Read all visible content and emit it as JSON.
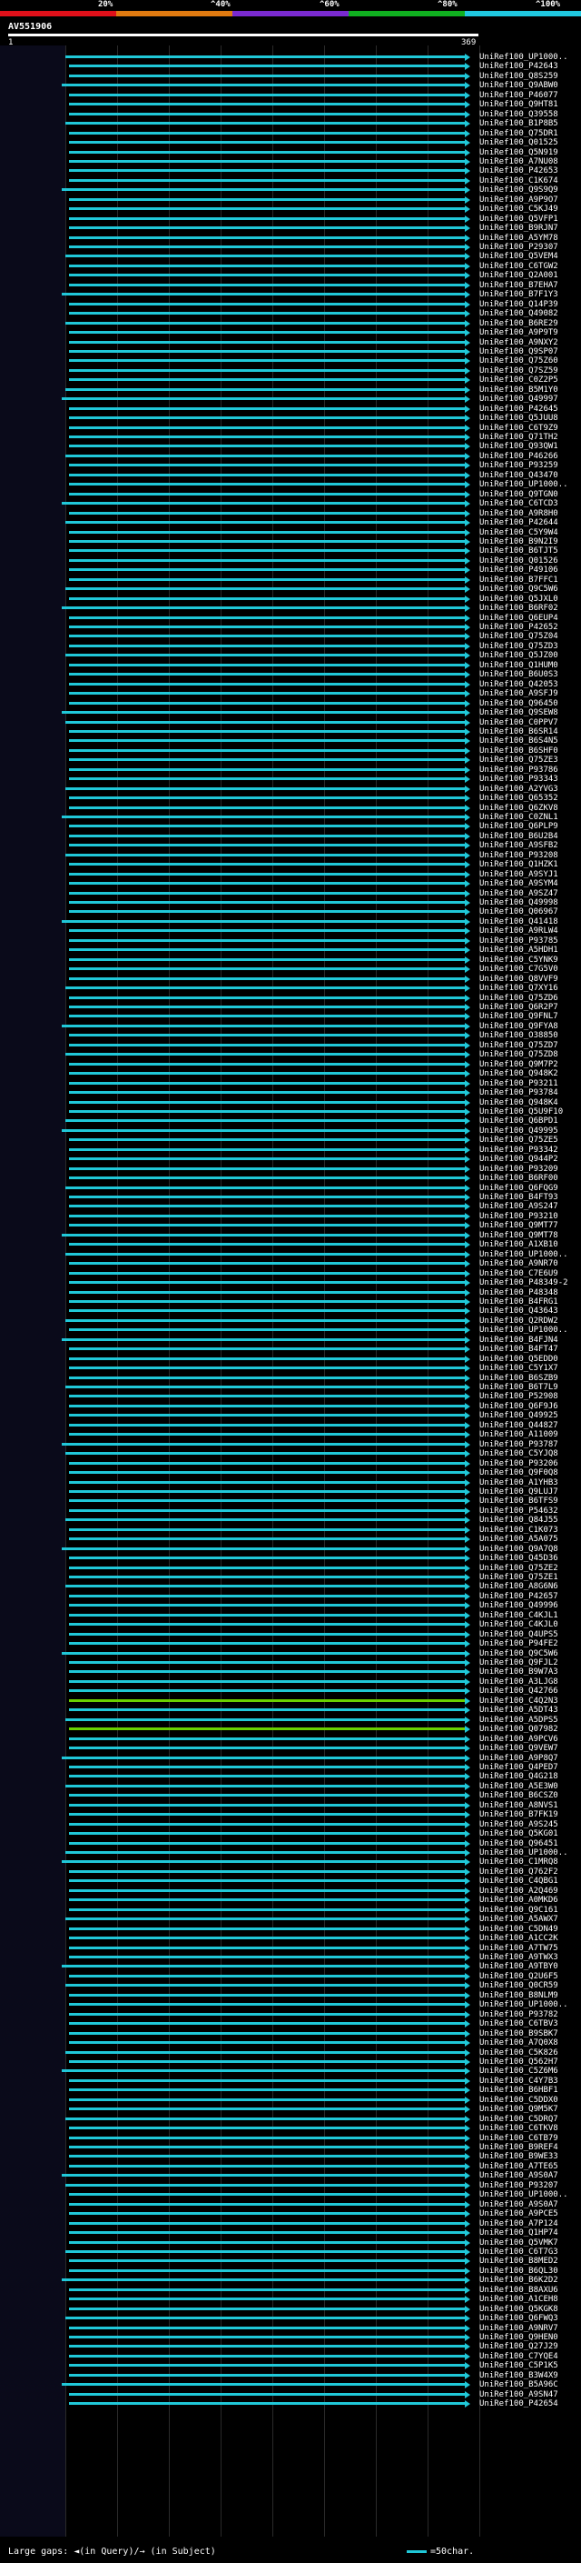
{
  "legend": {
    "labels": [
      "20%",
      "^40%",
      "^60%",
      "^80%",
      "^100%"
    ],
    "colors": [
      "#e0101a",
      "#e07a10",
      "#7a2ad0",
      "#10b020",
      "#20c8e0"
    ]
  },
  "query": {
    "id": "AV551906",
    "start": "1",
    "end": "369"
  },
  "colors": {
    "hit": "#20c8d8",
    "hit_green": "#6ad000",
    "background": "#000000"
  },
  "hits": [
    "UniRef100_UP1000..",
    "UniRef100_P42643",
    "UniRef100_Q8S259",
    "UniRef100_Q9ABW0",
    "UniRef100_P46077",
    "UniRef100_Q9HT81",
    "UniRef100_Q39558",
    "UniRef100_B1P8B5",
    "UniRef100_Q75DR1",
    "UniRef100_Q01525",
    "UniRef100_Q5N919",
    "UniRef100_A7NU08",
    "UniRef100_P42653",
    "UniRef100_C1K674",
    "UniRef100_Q9S9Q9",
    "UniRef100_A9P9O7",
    "UniRef100_C5KJ49",
    "UniRef100_Q5VFP1",
    "UniRef100_B9RJN7",
    "UniRef100_A5YM78",
    "UniRef100_P29307",
    "UniRef100_Q5VEM4",
    "UniRef100_C6TGW2",
    "UniRef100_Q2A001",
    "UniRef100_B7EHA7",
    "UniRef100_B7F1Y3",
    "UniRef100_Q14P39",
    "UniRef100_Q49082",
    "UniRef100_B6RE29",
    "UniRef100_A9P9T9",
    "UniRef100_A9NXY2",
    "UniRef100_Q9SP07",
    "UniRef100_Q75Z60",
    "UniRef100_Q7SZ59",
    "UniRef100_C0Z2P5",
    "UniRef100_B5M1Y0",
    "UniRef100_Q49997",
    "UniRef100_P42645",
    "UniRef100_Q5JUU8",
    "UniRef100_C6T9Z9",
    "UniRef100_Q71TH2",
    "UniRef100_Q93QW1",
    "UniRef100_P46266",
    "UniRef100_P93259",
    "UniRef100_Q43470",
    "UniRef100_UP1000..",
    "UniRef100_Q9TGN0",
    "UniRef100_C6TCD3",
    "UniRef100_A9R8H0",
    "UniRef100_P42644",
    "UniRef100_C5Y9W4",
    "UniRef100_B9N2I9",
    "UniRef100_B6TJT5",
    "UniRef100_Q01526",
    "UniRef100_P49106",
    "UniRef100_B7FFC1",
    "UniRef100_Q9C5W6",
    "UniRef100_Q5JXL0",
    "UniRef100_B6RF02",
    "UniRef100_Q6EUP4",
    "UniRef100_P42652",
    "UniRef100_Q75Z04",
    "UniRef100_Q75ZD3",
    "UniRef100_Q5JZ00",
    "UniRef100_Q1HUM0",
    "UniRef100_B6U0S3",
    "UniRef100_Q42053",
    "UniRef100_A9SFJ9",
    "UniRef100_Q96450",
    "UniRef100_Q9SEW8",
    "UniRef100_C0PPV7",
    "UniRef100_B6SR14",
    "UniRef100_B6S4N5",
    "UniRef100_B6SHF0",
    "UniRef100_Q75ZE3",
    "UniRef100_P93786",
    "UniRef100_P93343",
    "UniRef100_A2YVG3",
    "UniRef100_Q65352",
    "UniRef100_Q6ZKV8",
    "UniRef100_C0ZNL1",
    "UniRef100_Q6PLP9",
    "UniRef100_B6U2B4",
    "UniRef100_A9SFB2",
    "UniRef100_P93208",
    "UniRef100_Q1HZK1",
    "UniRef100_A9SYJ1",
    "UniRef100_A9SYM4",
    "UniRef100_A9SZ47",
    "UniRef100_Q49998",
    "UniRef100_Q06967",
    "UniRef100_Q41418",
    "UniRef100_A9RLW4",
    "UniRef100_P93785",
    "UniRef100_A5HDH1",
    "UniRef100_C5YNK9",
    "UniRef100_C7G5V0",
    "UniRef100_Q8VVF9",
    "UniRef100_Q7XY16",
    "UniRef100_Q75ZD6",
    "UniRef100_Q6R2P7",
    "UniRef100_Q9FNL7",
    "UniRef100_Q9FYA8",
    "UniRef100_O38850",
    "UniRef100_Q75ZD7",
    "UniRef100_Q75ZD8",
    "UniRef100_Q9M7P2",
    "UniRef100_Q948K2",
    "UniRef100_P93211",
    "UniRef100_P93784",
    "UniRef100_Q948K4",
    "UniRef100_Q5U9F10",
    "UniRef100_Q6BPD1",
    "UniRef100_Q49995",
    "UniRef100_Q75ZE5",
    "UniRef100_P93342",
    "UniRef100_Q944P2",
    "UniRef100_P93209",
    "UniRef100_B6RF00",
    "UniRef100_Q6FQG9",
    "UniRef100_B4FT93",
    "UniRef100_A9S247",
    "UniRef100_P93210",
    "UniRef100_Q9MT77",
    "UniRef100_Q9MT78",
    "UniRef100_A1XB10",
    "UniRef100_UP1000..",
    "UniRef100_A9NR70",
    "UniRef100_C7E6U9",
    "UniRef100_P48349-2",
    "UniRef100_P48348",
    "UniRef100_B4FRG1",
    "UniRef100_Q43643",
    "UniRef100_Q2RDW2",
    "UniRef100_UP1000..",
    "UniRef100_B4FJN4",
    "UniRef100_B4FT47",
    "UniRef100_Q5EDD0",
    "UniRef100_C5Y1X7",
    "UniRef100_B6SZB9",
    "UniRef100_B6T7L9",
    "UniRef100_P52908",
    "UniRef100_Q6F9J6",
    "UniRef100_Q49925",
    "UniRef100_Q44827",
    "UniRef100_A11009",
    "UniRef100_P93787",
    "UniRef100_C5YJQ8",
    "UniRef100_P93206",
    "UniRef100_Q9F0Q8",
    "UniRef100_A1YHB3",
    "UniRef100_Q9LUJ7",
    "UniRef100_B6TFS9",
    "UniRef100_P54632",
    "UniRef100_Q84J55",
    "UniRef100_C1K073",
    "UniRef100_A5A075",
    "UniRef100_Q9A7Q8",
    "UniRef100_Q45D36",
    "UniRef100_Q75ZE2",
    "UniRef100_Q75ZE1",
    "UniRef100_A8G6N6",
    "UniRef100_P42657",
    "UniRef100_Q49996",
    "UniRef100_C4KJL1",
    "UniRef100_C4KJL0",
    "UniRef100_Q4UPS5",
    "UniRef100_P94FE2",
    "UniRef100_Q9C5W6",
    "UniRef100_Q9FJL2",
    "UniRef100_B9W7A3",
    "UniRef100_A3LJG8",
    "UniRef100_Q42766",
    "UniRef100_C4Q2N3",
    "UniRef100_A5DT43",
    "UniRef100_A5DPS5",
    "UniRef100_Q07982",
    "UniRef100_A9PCV6",
    "UniRef100_Q9VEW7",
    "UniRef100_A9P8Q7",
    "UniRef100_Q4PED7",
    "UniRef100_Q4G218",
    "UniRef100_A5E3W0",
    "UniRef100_B6CSZ0",
    "UniRef100_A8NVS1",
    "UniRef100_B7FK19",
    "UniRef100_A9S245",
    "UniRef100_Q5KG01",
    "UniRef100_Q96451",
    "UniRef100_UP1000..",
    "UniRef100_C1MRQ8",
    "UniRef100_Q762F2",
    "UniRef100_C4QBG1",
    "UniRef100_A2Q469",
    "UniRef100_A0MKD6",
    "UniRef100_Q9C161",
    "UniRef100_A5AWX7",
    "UniRef100_C5DN49",
    "UniRef100_A1CC2K",
    "UniRef100_A7TW75",
    "UniRef100_A9TWX3",
    "UniRef100_A9TBY0",
    "UniRef100_Q2U6F5",
    "UniRef100_Q0CR59",
    "UniRef100_B8NLM9",
    "UniRef100_UP1000..",
    "UniRef100_P93782",
    "UniRef100_C6TBV3",
    "UniRef100_B9SBK7",
    "UniRef100_A7Q0X8",
    "UniRef100_C5K826",
    "UniRef100_Q562H7",
    "UniRef100_C5Z6M6",
    "UniRef100_C4Y7B3",
    "UniRef100_B6HBF1",
    "UniRef100_C5DDX0",
    "UniRef100_Q9M5K7",
    "UniRef100_C5DRQ7",
    "UniRef100_C6TKV8",
    "UniRef100_C6TB79",
    "UniRef100_B9REF4",
    "UniRef100_B9WE33",
    "UniRef100_A7TE65",
    "UniRef100_A9S0A7",
    "UniRef100_P93207",
    "UniRef100_UP1000..",
    "UniRef100_A9S0A7",
    "UniRef100_A9PCE5",
    "UniRef100_A7P124",
    "UniRef100_Q1HP74",
    "UniRef100_Q5VMK7",
    "UniRef100_C6T7G3",
    "UniRef100_B8MED2",
    "UniRef100_B6QL30",
    "UniRef100_B6K2D2",
    "UniRef100_B8AXU6",
    "UniRef100_A1CEH8",
    "UniRef100_Q5KGK8",
    "UniRef100_Q6FWQ3",
    "UniRef100_A9NRV7",
    "UniRef100_Q9HEN0",
    "UniRef100_Q27J29",
    "UniRef100_C7YQE4",
    "UniRef100_C5P1K5",
    "UniRef100_B3W4X9",
    "UniRef100_B5A96C",
    "UniRef100_A9SN47",
    "UniRef100_P42654"
  ],
  "footer": {
    "text": "Large gaps: ◄(in Query)/→ (in Subject)",
    "scale_label": "=50char."
  }
}
